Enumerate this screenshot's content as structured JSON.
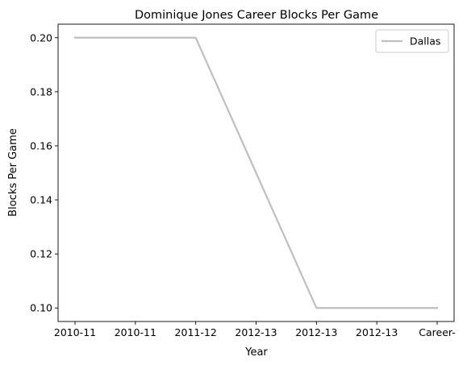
{
  "chart_data": {
    "type": "line",
    "title": "Dominique Jones Career Blocks Per Game",
    "xlabel": "Year",
    "ylabel": "Blocks Per Game",
    "categories": [
      "2010-11",
      "2010-11",
      "2011-12",
      "2012-13",
      "2012-13",
      "2012-13",
      "Career-"
    ],
    "series": [
      {
        "name": "Dallas",
        "color": "#bfbfbf",
        "values": [
          0.2,
          0.2,
          0.2,
          0.15,
          0.1,
          0.1,
          0.1
        ]
      }
    ],
    "yticks": [
      "0.10",
      "0.12",
      "0.14",
      "0.16",
      "0.18",
      "0.20"
    ],
    "ylim": [
      0.095,
      0.205
    ],
    "grid": false,
    "legend": "top-right"
  }
}
